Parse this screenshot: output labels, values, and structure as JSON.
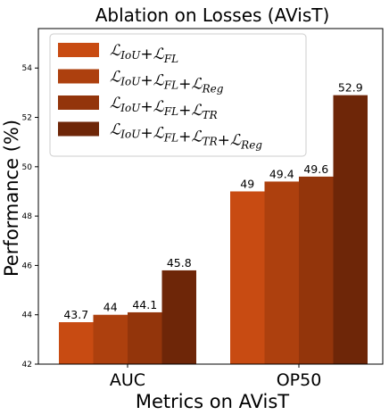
{
  "chart_data": {
    "type": "bar",
    "title": "Ablation on Losses (AVisT)",
    "xlabel": "Metrics on AVisT",
    "ylabel": "Performance (%)",
    "categories": [
      "AUC",
      "OP50"
    ],
    "ylim": [
      42,
      55.6
    ],
    "yticks": [
      42,
      44,
      46,
      48,
      50,
      52,
      54
    ],
    "grid": false,
    "legend_position": "top-left",
    "series": [
      {
        "name": "ℒIoU+ℒFL",
        "legend_terms": [
          [
            "ℒ",
            "IoU"
          ],
          [
            "ℒ",
            "FL"
          ]
        ],
        "color": "#c84b12",
        "values": [
          43.7,
          49
        ]
      },
      {
        "name": "ℒIoU+ℒFL+ℒReg",
        "legend_terms": [
          [
            "ℒ",
            "IoU"
          ],
          [
            "ℒ",
            "FL"
          ],
          [
            "ℒ",
            "Reg"
          ]
        ],
        "color": "#ad400e",
        "values": [
          44,
          49.4
        ]
      },
      {
        "name": "ℒIoU+ℒFL+ℒTR",
        "legend_terms": [
          [
            "ℒ",
            "IoU"
          ],
          [
            "ℒ",
            "FL"
          ],
          [
            "ℒ",
            "TR"
          ]
        ],
        "color": "#93350b",
        "values": [
          44.1,
          49.6
        ]
      },
      {
        "name": "ℒIoU+ℒFL+ℒTR+ℒReg",
        "legend_terms": [
          [
            "ℒ",
            "IoU"
          ],
          [
            "ℒ",
            "FL"
          ],
          [
            "ℒ",
            "TR"
          ],
          [
            "ℒ",
            "Reg"
          ]
        ],
        "color": "#6e2608",
        "values": [
          45.8,
          52.9
        ]
      }
    ]
  }
}
